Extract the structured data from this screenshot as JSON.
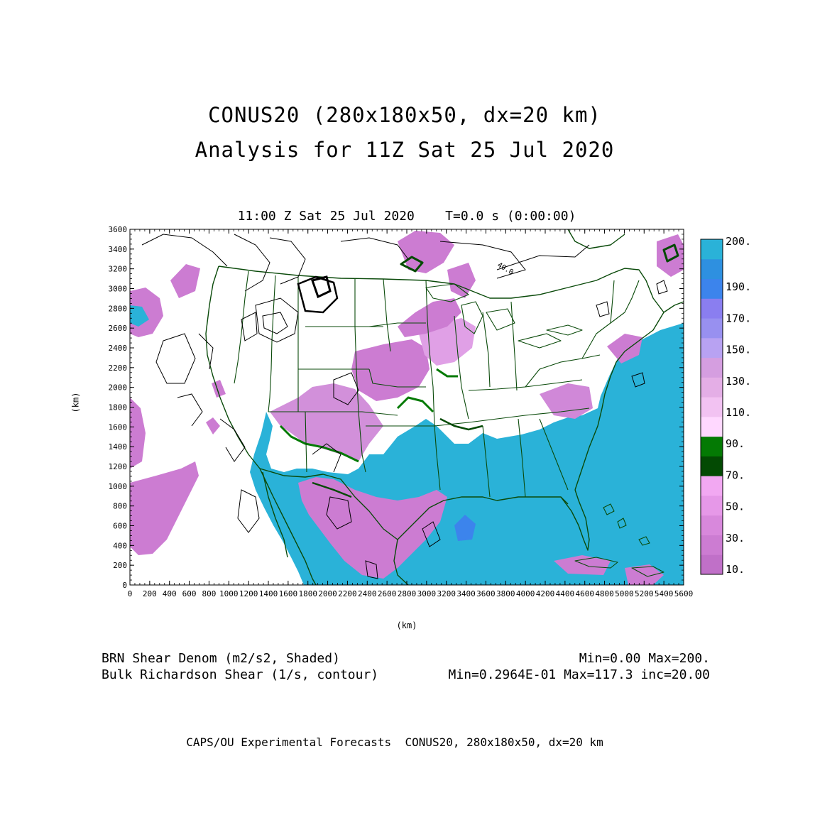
{
  "title": {
    "line1": "CONUS20 (280x180x50, dx=20 km)",
    "line2": "Analysis for 11Z Sat 25 Jul 2020"
  },
  "subtitle": "11:00 Z Sat 25 Jul 2020    T=0.0 s (0:00:00)",
  "axes": {
    "xlabel": "(km)",
    "ylabel": "(km)",
    "xticks": [
      "0",
      "200",
      "400",
      "600",
      "800",
      "1000",
      "1200",
      "1400",
      "1600",
      "1800",
      "2000",
      "2200",
      "2400",
      "2600",
      "2800",
      "3000",
      "3200",
      "3400",
      "3600",
      "3800",
      "4000",
      "4200",
      "4400",
      "4600",
      "4800",
      "5000",
      "5200",
      "5400",
      "5600"
    ],
    "yticks": [
      "0",
      "200",
      "400",
      "600",
      "800",
      "1000",
      "1200",
      "1400",
      "1600",
      "1800",
      "2000",
      "2200",
      "2400",
      "2600",
      "2800",
      "3000",
      "3200",
      "3400",
      "3600"
    ],
    "xlim": [
      0,
      5600
    ],
    "ylim": [
      0,
      3600
    ]
  },
  "contour_label": "40.0",
  "colorbar": {
    "labels": [
      "10.",
      "30.",
      "50.",
      "70.",
      "90.",
      "110.",
      "130.",
      "150.",
      "170.",
      "190.",
      "200."
    ],
    "colors": [
      "#c070c8",
      "#cc7cd2",
      "#d888dc",
      "#e698e8",
      "#f2a8f2",
      "#034a03",
      "#047a04",
      "#ffd8ff",
      "#f2c2f2",
      "#e4aee6",
      "#d59ee0",
      "#b8a2f2",
      "#9890f0",
      "#8a7ef0",
      "#3c84ec",
      "#2e90e0",
      "#2ab2d8"
    ]
  },
  "legend": {
    "field1": "BRN Shear Denom (m2/s2, Shaded)",
    "field2": "Bulk Richardson Shear (1/s, contour)",
    "minmax1": "Min=0.00 Max=200.",
    "minmax2": "Min=0.2964E-01 Max=117.3 inc=20.00"
  },
  "credit": "CAPS/OU Experimental Forecasts  CONUS20, 280x180x50, dx=20 km",
  "palette": {
    "ocean": "#2ab2d8",
    "magenta": "#cc7cd2",
    "light_magenta": "#e8a8ec",
    "purple": "#a090f0",
    "blue": "#3c84ec",
    "dark_green": "#034a03",
    "green": "#047a04",
    "border": "#0a4a0a"
  }
}
